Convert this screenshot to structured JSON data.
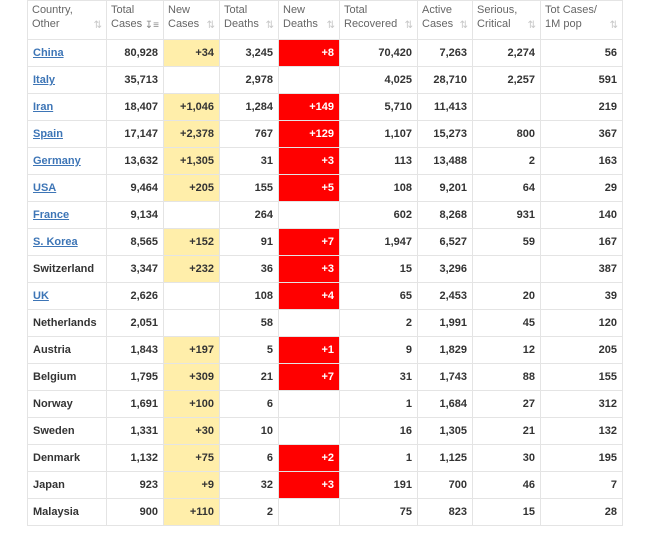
{
  "headers": [
    {
      "line1": "Country,",
      "line2": "Other"
    },
    {
      "line1": "Total",
      "line2": "Cases"
    },
    {
      "line1": "New",
      "line2": "Cases"
    },
    {
      "line1": "Total",
      "line2": "Deaths"
    },
    {
      "line1": "New",
      "line2": "Deaths"
    },
    {
      "line1": "Total",
      "line2": "Recovered"
    },
    {
      "line1": "Active",
      "line2": "Cases"
    },
    {
      "line1": "Serious,",
      "line2": "Critical"
    },
    {
      "line1": "Tot Cases/",
      "line2": "1M pop"
    }
  ],
  "sort_icon": "sort-arrows-icon",
  "colors": {
    "new_cases_bg": "#ffeeaa",
    "new_deaths_bg": "#ff0000",
    "link": "#3d75b6"
  },
  "rows": [
    {
      "country": "China",
      "link": true,
      "total_cases": "80,928",
      "new_cases": "+34",
      "total_deaths": "3,245",
      "new_deaths": "+8",
      "total_recovered": "70,420",
      "active_cases": "7,263",
      "serious_critical": "2,274",
      "per_million": "56"
    },
    {
      "country": "Italy",
      "link": true,
      "total_cases": "35,713",
      "new_cases": "",
      "total_deaths": "2,978",
      "new_deaths": "",
      "total_recovered": "4,025",
      "active_cases": "28,710",
      "serious_critical": "2,257",
      "per_million": "591"
    },
    {
      "country": "Iran",
      "link": true,
      "total_cases": "18,407",
      "new_cases": "+1,046",
      "total_deaths": "1,284",
      "new_deaths": "+149",
      "total_recovered": "5,710",
      "active_cases": "11,413",
      "serious_critical": "",
      "per_million": "219"
    },
    {
      "country": "Spain",
      "link": true,
      "total_cases": "17,147",
      "new_cases": "+2,378",
      "total_deaths": "767",
      "new_deaths": "+129",
      "total_recovered": "1,107",
      "active_cases": "15,273",
      "serious_critical": "800",
      "per_million": "367"
    },
    {
      "country": "Germany",
      "link": true,
      "total_cases": "13,632",
      "new_cases": "+1,305",
      "total_deaths": "31",
      "new_deaths": "+3",
      "total_recovered": "113",
      "active_cases": "13,488",
      "serious_critical": "2",
      "per_million": "163"
    },
    {
      "country": "USA",
      "link": true,
      "total_cases": "9,464",
      "new_cases": "+205",
      "total_deaths": "155",
      "new_deaths": "+5",
      "total_recovered": "108",
      "active_cases": "9,201",
      "serious_critical": "64",
      "per_million": "29"
    },
    {
      "country": "France",
      "link": true,
      "total_cases": "9,134",
      "new_cases": "",
      "total_deaths": "264",
      "new_deaths": "",
      "total_recovered": "602",
      "active_cases": "8,268",
      "serious_critical": "931",
      "per_million": "140"
    },
    {
      "country": "S. Korea",
      "link": true,
      "total_cases": "8,565",
      "new_cases": "+152",
      "total_deaths": "91",
      "new_deaths": "+7",
      "total_recovered": "1,947",
      "active_cases": "6,527",
      "serious_critical": "59",
      "per_million": "167"
    },
    {
      "country": "Switzerland",
      "link": false,
      "total_cases": "3,347",
      "new_cases": "+232",
      "total_deaths": "36",
      "new_deaths": "+3",
      "total_recovered": "15",
      "active_cases": "3,296",
      "serious_critical": "",
      "per_million": "387"
    },
    {
      "country": "UK",
      "link": true,
      "total_cases": "2,626",
      "new_cases": "",
      "total_deaths": "108",
      "new_deaths": "+4",
      "total_recovered": "65",
      "active_cases": "2,453",
      "serious_critical": "20",
      "per_million": "39"
    },
    {
      "country": "Netherlands",
      "link": false,
      "total_cases": "2,051",
      "new_cases": "",
      "total_deaths": "58",
      "new_deaths": "",
      "total_recovered": "2",
      "active_cases": "1,991",
      "serious_critical": "45",
      "per_million": "120"
    },
    {
      "country": "Austria",
      "link": false,
      "total_cases": "1,843",
      "new_cases": "+197",
      "total_deaths": "5",
      "new_deaths": "+1",
      "total_recovered": "9",
      "active_cases": "1,829",
      "serious_critical": "12",
      "per_million": "205"
    },
    {
      "country": "Belgium",
      "link": false,
      "total_cases": "1,795",
      "new_cases": "+309",
      "total_deaths": "21",
      "new_deaths": "+7",
      "total_recovered": "31",
      "active_cases": "1,743",
      "serious_critical": "88",
      "per_million": "155"
    },
    {
      "country": "Norway",
      "link": false,
      "total_cases": "1,691",
      "new_cases": "+100",
      "total_deaths": "6",
      "new_deaths": "",
      "total_recovered": "1",
      "active_cases": "1,684",
      "serious_critical": "27",
      "per_million": "312"
    },
    {
      "country": "Sweden",
      "link": false,
      "total_cases": "1,331",
      "new_cases": "+30",
      "total_deaths": "10",
      "new_deaths": "",
      "total_recovered": "16",
      "active_cases": "1,305",
      "serious_critical": "21",
      "per_million": "132"
    },
    {
      "country": "Denmark",
      "link": false,
      "total_cases": "1,132",
      "new_cases": "+75",
      "total_deaths": "6",
      "new_deaths": "+2",
      "total_recovered": "1",
      "active_cases": "1,125",
      "serious_critical": "30",
      "per_million": "195"
    },
    {
      "country": "Japan",
      "link": false,
      "total_cases": "923",
      "new_cases": "+9",
      "total_deaths": "32",
      "new_deaths": "+3",
      "total_recovered": "191",
      "active_cases": "700",
      "serious_critical": "46",
      "per_million": "7"
    },
    {
      "country": "Malaysia",
      "link": false,
      "total_cases": "900",
      "new_cases": "+110",
      "total_deaths": "2",
      "new_deaths": "",
      "total_recovered": "75",
      "active_cases": "823",
      "serious_critical": "15",
      "per_million": "28"
    }
  ]
}
